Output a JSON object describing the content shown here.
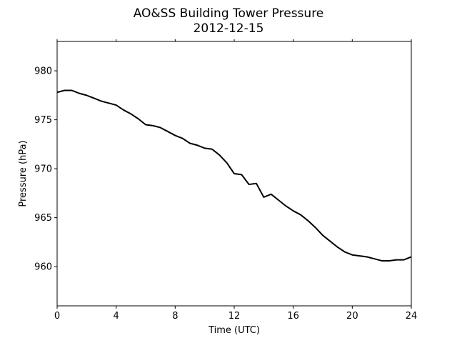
{
  "chart_data": {
    "type": "line",
    "title": "AO&SS Building Tower Pressure",
    "subtitle": "2012-12-15",
    "xlabel": "Time (UTC)",
    "ylabel": "Pressure (hPa)",
    "xlim": [
      0,
      24
    ],
    "ylim": [
      956,
      983
    ],
    "x_ticks": [
      0,
      4,
      8,
      12,
      16,
      20,
      24
    ],
    "y_ticks": [
      960,
      965,
      970,
      975,
      980
    ],
    "grid": false,
    "legend": "none",
    "colors": {
      "line": "#000000",
      "axes": "#000000",
      "background": "#ffffff"
    },
    "series": [
      {
        "x": [
          0,
          0.5,
          1,
          1.5,
          2,
          2.5,
          3,
          3.5,
          4,
          4.5,
          5,
          5.5,
          6,
          6.5,
          7,
          7.5,
          8,
          8.5,
          9,
          9.5,
          10,
          10.5,
          11,
          11.5,
          12,
          12.5,
          13,
          13.5,
          14,
          14.5,
          15,
          15.5,
          16,
          16.5,
          17,
          17.5,
          18,
          18.5,
          19,
          19.5,
          20,
          20.5,
          21,
          21.5,
          22,
          22.5,
          23,
          23.5,
          24
        ],
        "y": [
          977.8,
          978.0,
          978.0,
          977.7,
          977.5,
          977.2,
          976.9,
          976.7,
          976.5,
          976.0,
          975.6,
          975.1,
          974.5,
          974.4,
          974.2,
          973.8,
          973.4,
          973.1,
          972.6,
          972.4,
          972.1,
          972.0,
          971.4,
          970.6,
          969.5,
          969.4,
          968.4,
          968.5,
          967.1,
          967.4,
          966.8,
          966.2,
          965.7,
          965.3,
          964.7,
          964.0,
          963.2,
          962.6,
          962.0,
          961.5,
          961.2,
          961.1,
          961.0,
          960.8,
          960.6,
          960.6,
          960.7,
          960.7,
          961.0
        ]
      }
    ]
  }
}
